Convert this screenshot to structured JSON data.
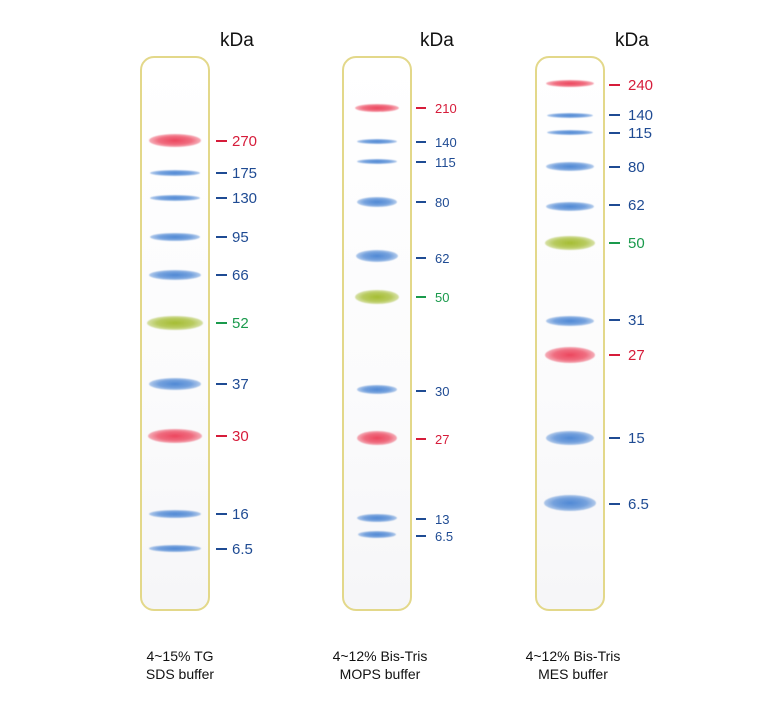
{
  "unit_label": "kDa",
  "colors": {
    "red": "#d61c3a",
    "blue": "#1f4b93",
    "green": "#1a9a4c",
    "lane_border": "#e3d88a"
  },
  "ladders": [
    {
      "caption": [
        "4~15% TG",
        "SDS buffer"
      ],
      "markers": [
        {
          "label": "270",
          "color": "red"
        },
        {
          "label": "175",
          "color": "blue"
        },
        {
          "label": "130",
          "color": "blue"
        },
        {
          "label": "95",
          "color": "blue"
        },
        {
          "label": "66",
          "color": "blue"
        },
        {
          "label": "52",
          "color": "green"
        },
        {
          "label": "37",
          "color": "blue"
        },
        {
          "label": "30",
          "color": "red"
        },
        {
          "label": "16",
          "color": "blue"
        },
        {
          "label": "6.5",
          "color": "blue"
        }
      ]
    },
    {
      "caption": [
        "4~12% Bis-Tris",
        "MOPS buffer"
      ],
      "markers": [
        {
          "label": "210",
          "color": "red"
        },
        {
          "label": "140",
          "color": "blue"
        },
        {
          "label": "115",
          "color": "blue"
        },
        {
          "label": "80",
          "color": "blue"
        },
        {
          "label": "62",
          "color": "blue"
        },
        {
          "label": "50",
          "color": "green"
        },
        {
          "label": "30",
          "color": "blue"
        },
        {
          "label": "27",
          "color": "red"
        },
        {
          "label": "13",
          "color": "blue"
        },
        {
          "label": "6.5",
          "color": "blue"
        }
      ]
    },
    {
      "caption": [
        "4~12% Bis-Tris",
        "MES buffer"
      ],
      "markers": [
        {
          "label": "240",
          "color": "red"
        },
        {
          "label": "140",
          "color": "blue"
        },
        {
          "label": "115",
          "color": "blue"
        },
        {
          "label": "80",
          "color": "blue"
        },
        {
          "label": "62",
          "color": "blue"
        },
        {
          "label": "50",
          "color": "green"
        },
        {
          "label": "31",
          "color": "blue"
        },
        {
          "label": "27",
          "color": "red"
        },
        {
          "label": "15",
          "color": "blue"
        },
        {
          "label": "6.5",
          "color": "blue"
        }
      ]
    }
  ]
}
